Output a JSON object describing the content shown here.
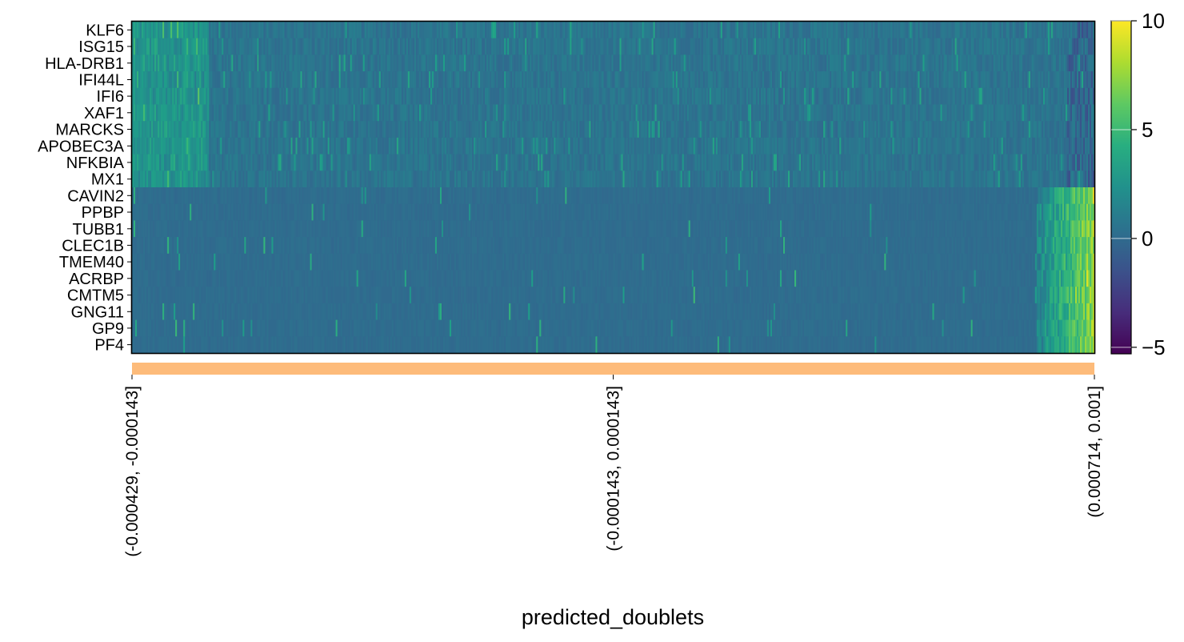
{
  "chart_data": {
    "type": "heatmap",
    "genes": [
      "KLF6",
      "ISG15",
      "HLA-DRB1",
      "IFI44L",
      "IFI6",
      "XAF1",
      "MARCKS",
      "APOBEC3A",
      "NFKBIA",
      "MX1",
      "CAVIN2",
      "PPBP",
      "TUBB1",
      "CLEC1B",
      "TMEM40",
      "ACRBP",
      "CMTM5",
      "GNG11",
      "GP9",
      "PF4"
    ],
    "groupby": "predicted_doublets",
    "groups": [
      {
        "label": "(-0.000429, -0.000143]",
        "color": "#fdbb7a",
        "position": 0.0
      },
      {
        "label": "(-0.000143, 0.000143]",
        "color": "#fdbb7a",
        "position": 0.5
      },
      {
        "label": "(0.000714, 0.001]",
        "color": "#fdbb7a",
        "position": 1.0
      }
    ],
    "xlabel": "predicted_doublets",
    "colorbar": {
      "colormap": "viridis",
      "vmin": -5.3,
      "vmax": 10,
      "ticks": [
        -5,
        0,
        5,
        10
      ],
      "tick_labels": [
        "−5",
        "0",
        "5",
        "10"
      ]
    },
    "pattern": {
      "n_cells": 600,
      "interferon_genes_high_fraction_start": 0.0,
      "interferon_genes_high_fraction_end": 0.08,
      "platelet_genes_high_fraction_start": 0.94,
      "platelet_genes_high_fraction_end": 1.0
    }
  }
}
